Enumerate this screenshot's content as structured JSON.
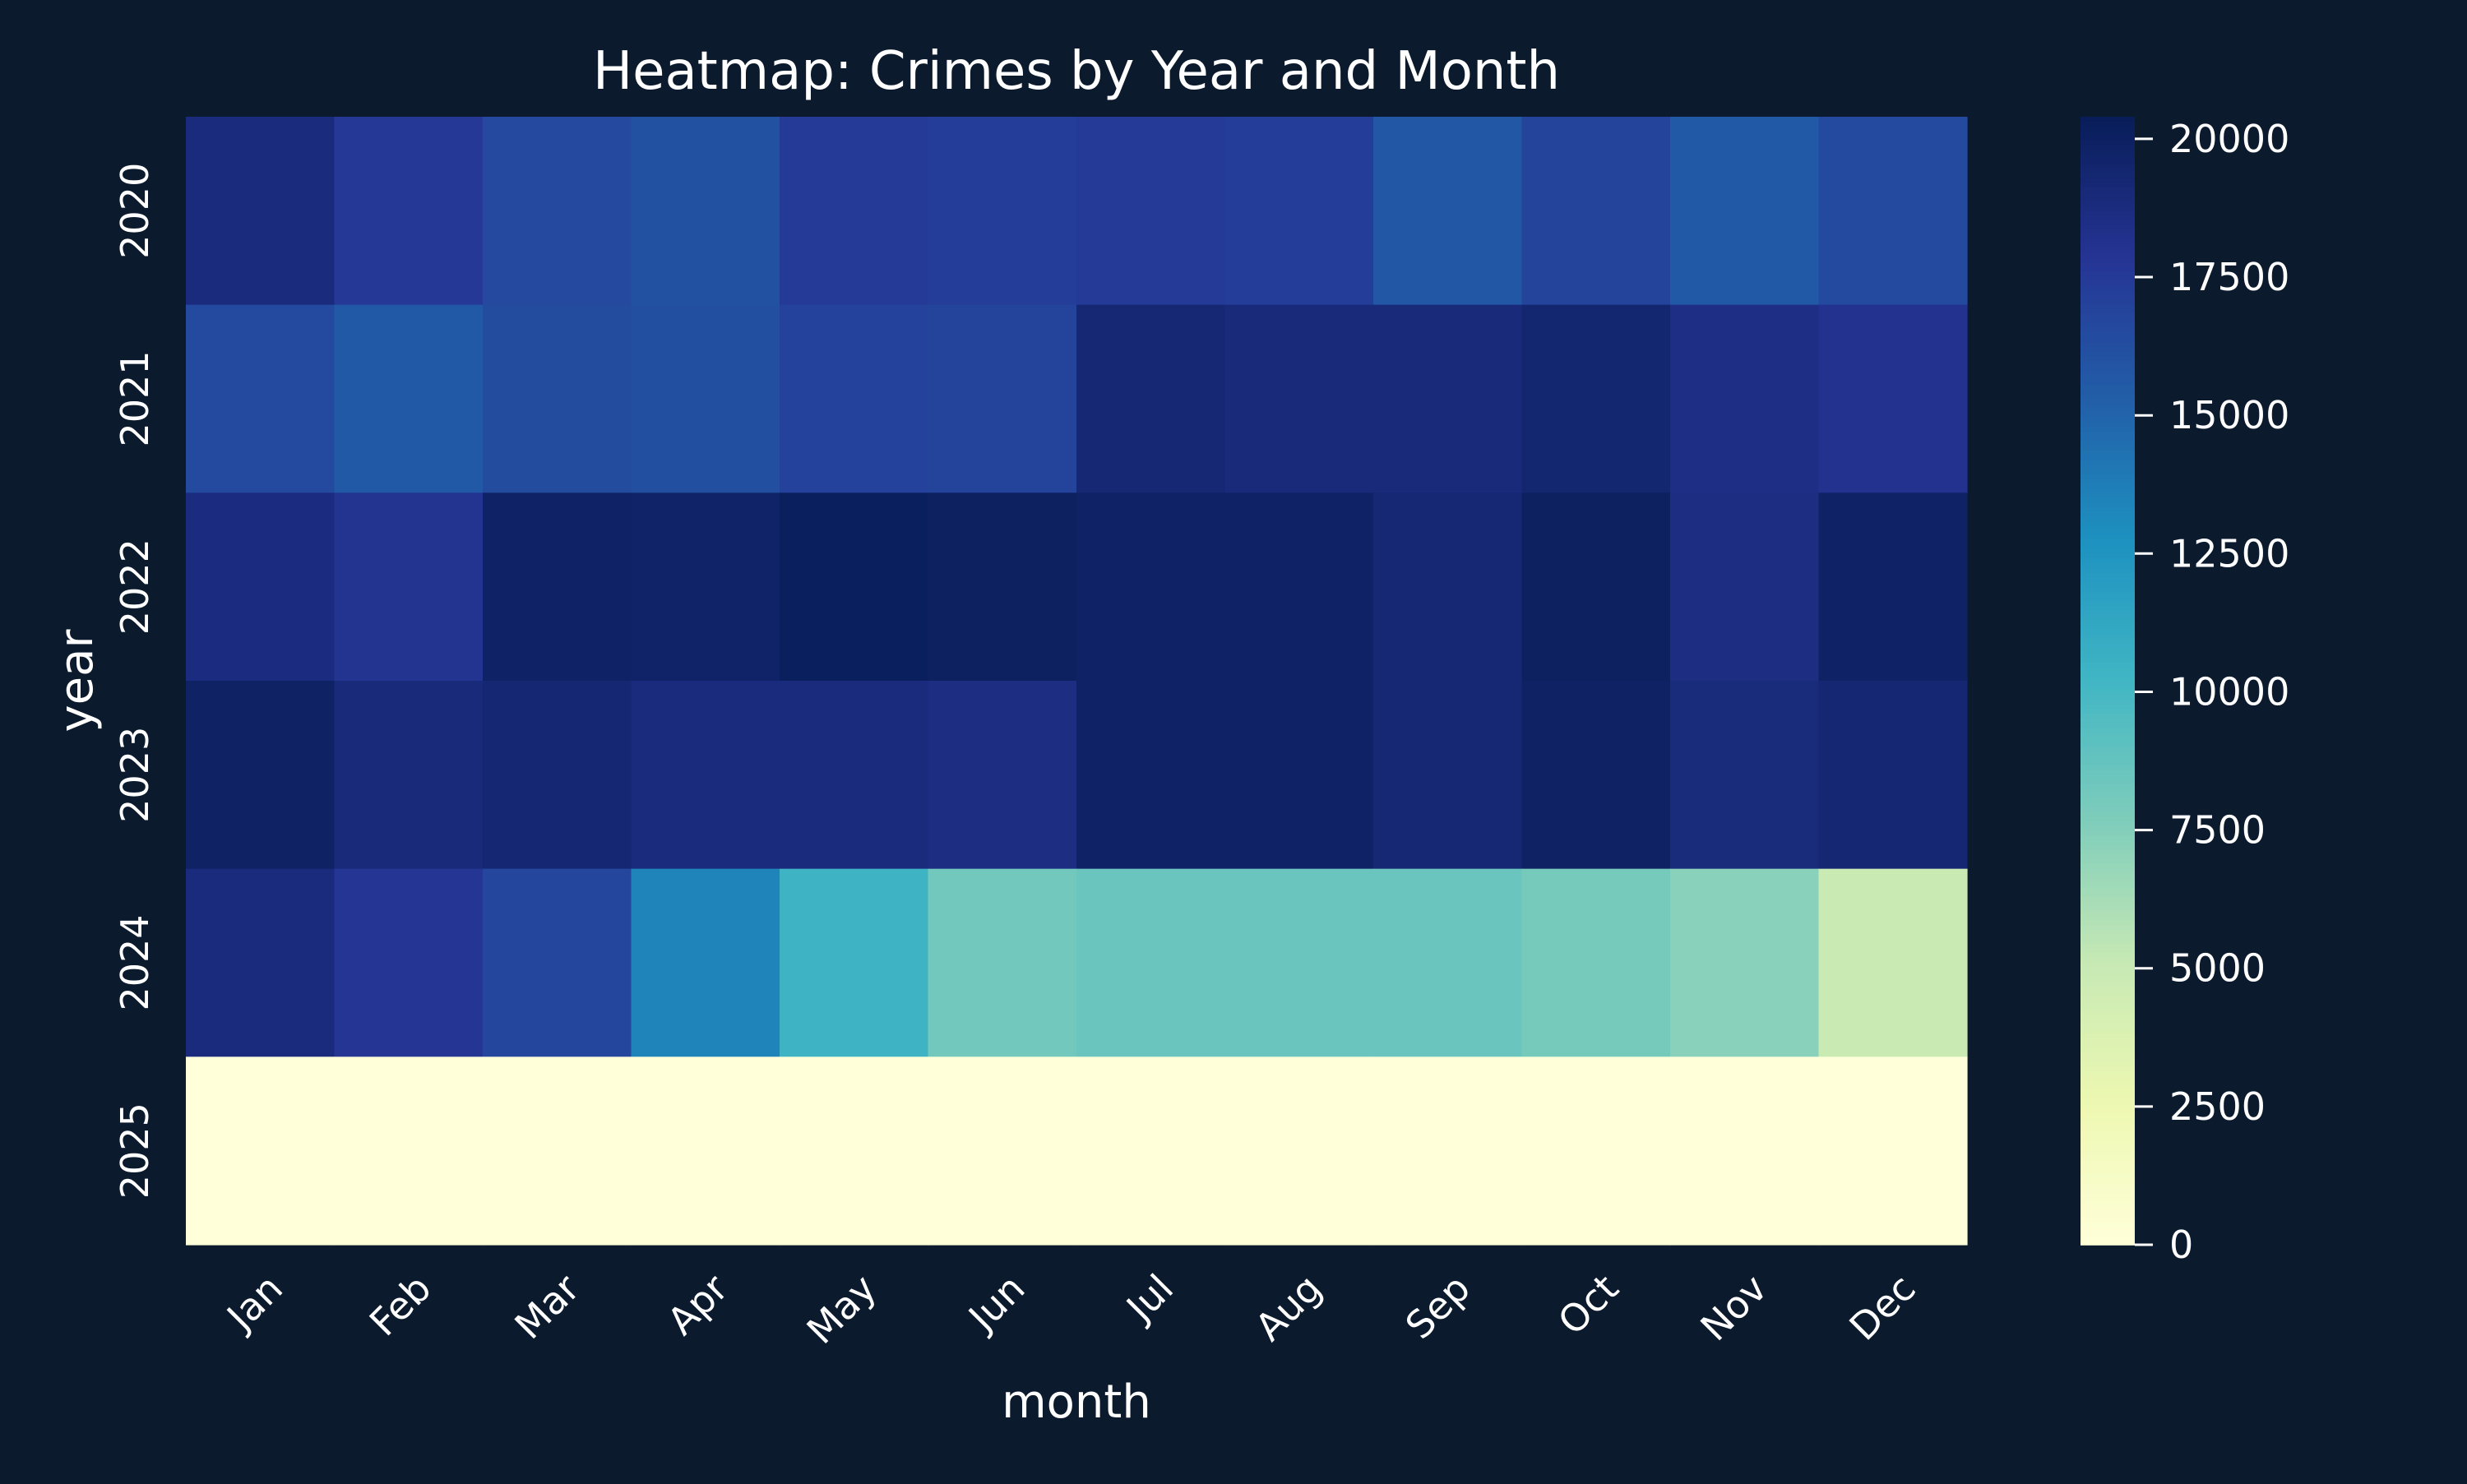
{
  "chart_data": {
    "type": "heatmap",
    "title": "Heatmap: Crimes by Year and Month",
    "xlabel": "month",
    "ylabel": "year",
    "x_categories": [
      "Jan",
      "Feb",
      "Mar",
      "Apr",
      "May",
      "Jun",
      "Jul",
      "Aug",
      "Sep",
      "Oct",
      "Nov",
      "Dec"
    ],
    "y_categories": [
      "2020",
      "2021",
      "2022",
      "2023",
      "2024",
      "2025"
    ],
    "values": [
      [
        18800,
        17600,
        16600,
        16100,
        17500,
        17300,
        17500,
        17300,
        15700,
        16900,
        15600,
        16500
      ],
      [
        16500,
        15600,
        16400,
        16200,
        17000,
        16900,
        19200,
        19000,
        19000,
        19400,
        18500,
        18100
      ],
      [
        18700,
        18000,
        19800,
        19700,
        20200,
        20000,
        19800,
        19800,
        19200,
        20000,
        18600,
        19800
      ],
      [
        19900,
        19000,
        19300,
        18800,
        18800,
        18600,
        19800,
        19800,
        19200,
        19900,
        18900,
        19300
      ],
      [
        18800,
        17800,
        16700,
        13400,
        10400,
        8200,
        8500,
        8500,
        8500,
        8000,
        7300,
        4900
      ],
      [
        0,
        0,
        0,
        0,
        0,
        0,
        0,
        0,
        0,
        0,
        0,
        0
      ]
    ],
    "colorbar": {
      "min": 0,
      "max": 20400,
      "ticks": [
        0,
        2500,
        5000,
        7500,
        10000,
        12500,
        15000,
        17500,
        20000
      ],
      "tick_labels": [
        "0",
        "2500",
        "5000",
        "7500",
        "10000",
        "12500",
        "15000",
        "17500",
        "20000"
      ],
      "colormap": "YlGnBu"
    },
    "colors": {
      "background": "#0b1a2d",
      "text": "#ffffff"
    }
  }
}
